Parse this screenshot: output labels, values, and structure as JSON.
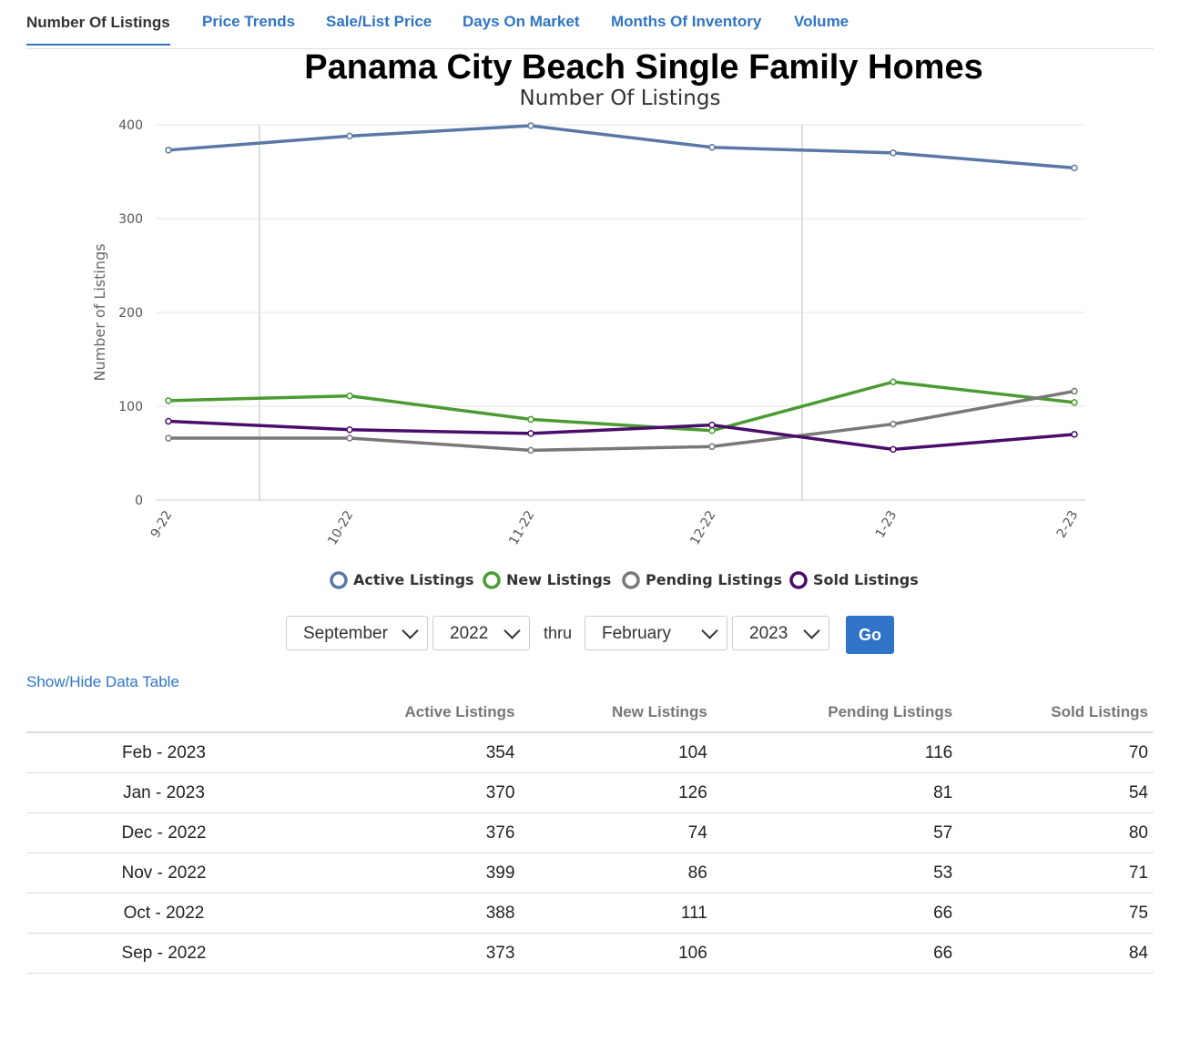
{
  "tabs": [
    "Number Of Listings",
    "Price Trends",
    "Sale/List Price",
    "Days On Market",
    "Months Of Inventory",
    "Volume"
  ],
  "chart_data": {
    "type": "line",
    "title": "Panama City Beach Single Family Homes",
    "subtitle": "Number Of Listings",
    "y_label": "Number of Listings",
    "categories": [
      "9-22",
      "10-22",
      "11-22",
      "12-22",
      "1-23",
      "2-23"
    ],
    "series": [
      {
        "name": "Active Listings",
        "color": "#5a78a6",
        "values": [
          373,
          388,
          399,
          376,
          370,
          354
        ]
      },
      {
        "name": "New Listings",
        "color": "#4b9b32",
        "values": [
          106,
          111,
          86,
          74,
          126,
          104
        ]
      },
      {
        "name": "Pending Listings",
        "color": "#787878",
        "values": [
          66,
          66,
          53,
          57,
          81,
          116
        ]
      },
      {
        "name": "Sold Listings",
        "color": "#4a0d6b",
        "values": [
          84,
          75,
          71,
          80,
          54,
          70
        ]
      }
    ],
    "ylim": [
      0,
      400
    ],
    "yticks": [
      0,
      100,
      200,
      300,
      400
    ],
    "grid": true
  },
  "controls": {
    "from_month": "September",
    "from_year": "2022",
    "thru": "thru",
    "to_month": "February",
    "to_year": "2023",
    "go": "Go"
  },
  "table_toggle": "Show/Hide Data Table",
  "table": {
    "headers": [
      "Active Listings",
      "New Listings",
      "Pending Listings",
      "Sold Listings"
    ],
    "rows": [
      [
        "Feb - 2023",
        "354",
        "104",
        "116",
        "70"
      ],
      [
        "Jan - 2023",
        "370",
        "126",
        "81",
        "54"
      ],
      [
        "Dec - 2022",
        "376",
        "74",
        "57",
        "80"
      ],
      [
        "Nov - 2022",
        "399",
        "86",
        "53",
        "71"
      ],
      [
        "Oct - 2022",
        "388",
        "111",
        "66",
        "75"
      ],
      [
        "Sep - 2022",
        "373",
        "106",
        "66",
        "84"
      ]
    ]
  }
}
